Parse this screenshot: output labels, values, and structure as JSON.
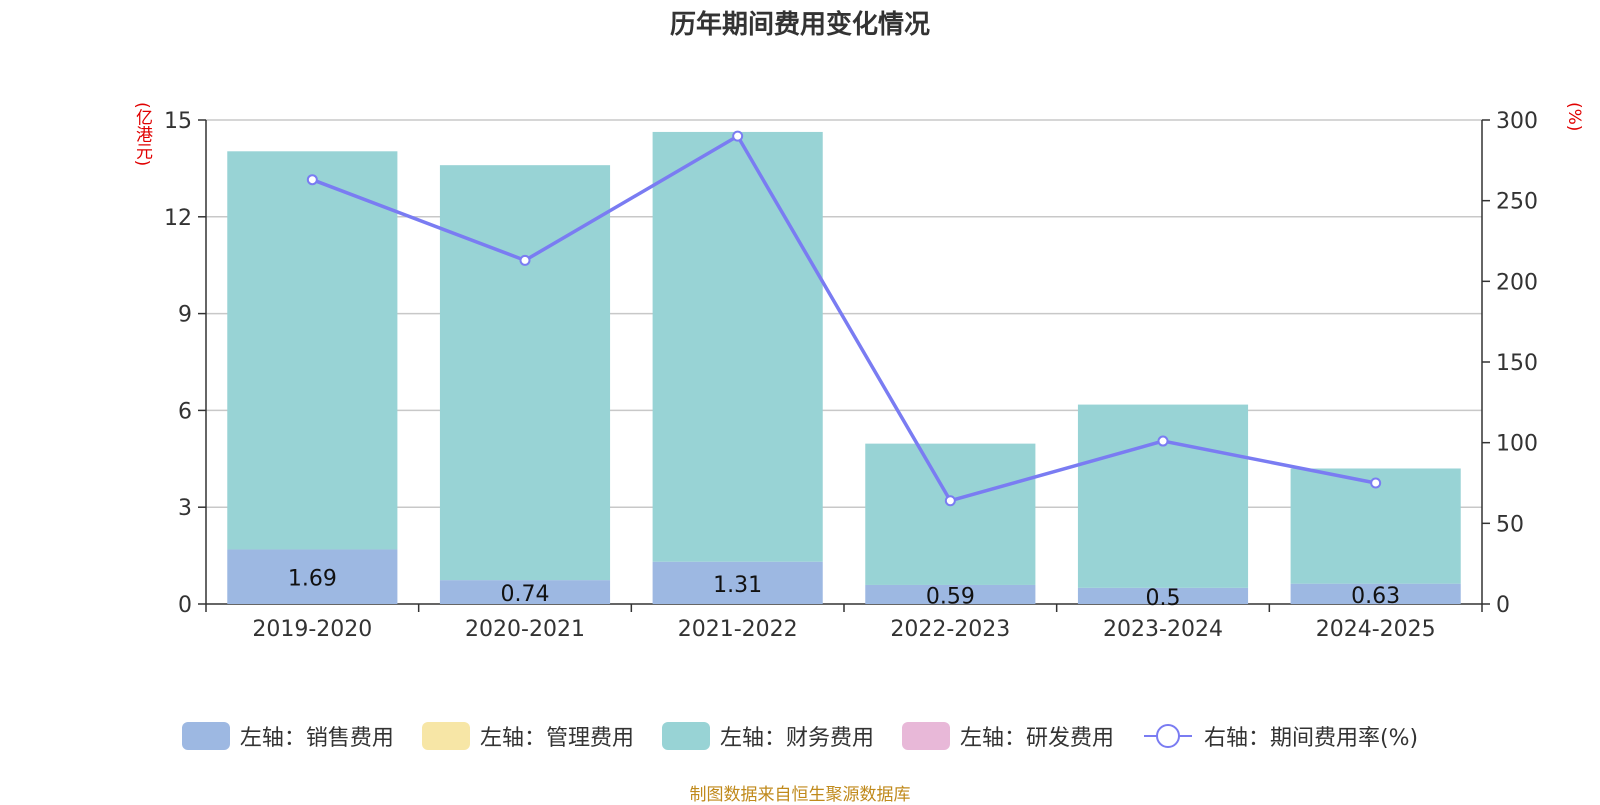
{
  "chart_data": {
    "type": "bar",
    "title": "历年期间费用变化情况",
    "categories": [
      "2019-2020",
      "2020-2021",
      "2021-2022",
      "2022-2023",
      "2023-2024",
      "2024-2025"
    ],
    "stacked": true,
    "series": [
      {
        "name": "左轴：销售费用",
        "axis": "left",
        "color": "#9db8e2",
        "values": [
          1.69,
          0.74,
          1.31,
          0.59,
          0.5,
          0.63
        ],
        "labels": [
          "1.69",
          "0.74",
          "1.31",
          "0.59",
          "0.5",
          "0.63"
        ]
      },
      {
        "name": "左轴：管理费用",
        "axis": "left",
        "color": "#f7e6a6",
        "values": [
          0,
          0,
          0,
          0,
          0,
          0
        ]
      },
      {
        "name": "左轴：财务费用",
        "axis": "left",
        "color": "#98d3d5",
        "values": [
          12.34,
          12.86,
          13.32,
          4.38,
          5.68,
          3.57
        ]
      },
      {
        "name": "左轴：研发费用",
        "axis": "left",
        "color": "#e8b8d8",
        "values": [
          0,
          0,
          0,
          0,
          0,
          0
        ]
      },
      {
        "name": "右轴：期间费用率(%)",
        "axis": "right",
        "type": "line",
        "color": "#7a7cf2",
        "values": [
          263,
          213,
          290,
          64,
          101,
          75
        ]
      }
    ],
    "y_left": {
      "label": "(亿港元)",
      "ylim": [
        0,
        15
      ],
      "ticks": [
        "0",
        "3",
        "6",
        "9",
        "12",
        "15"
      ]
    },
    "y_right": {
      "label": "(%)",
      "ylim": [
        0,
        300
      ],
      "ticks": [
        "0",
        "50",
        "100",
        "150",
        "200",
        "250",
        "300"
      ]
    },
    "grid": true,
    "legend_position": "bottom"
  },
  "source_text": "制图数据来自恒生聚源数据库"
}
